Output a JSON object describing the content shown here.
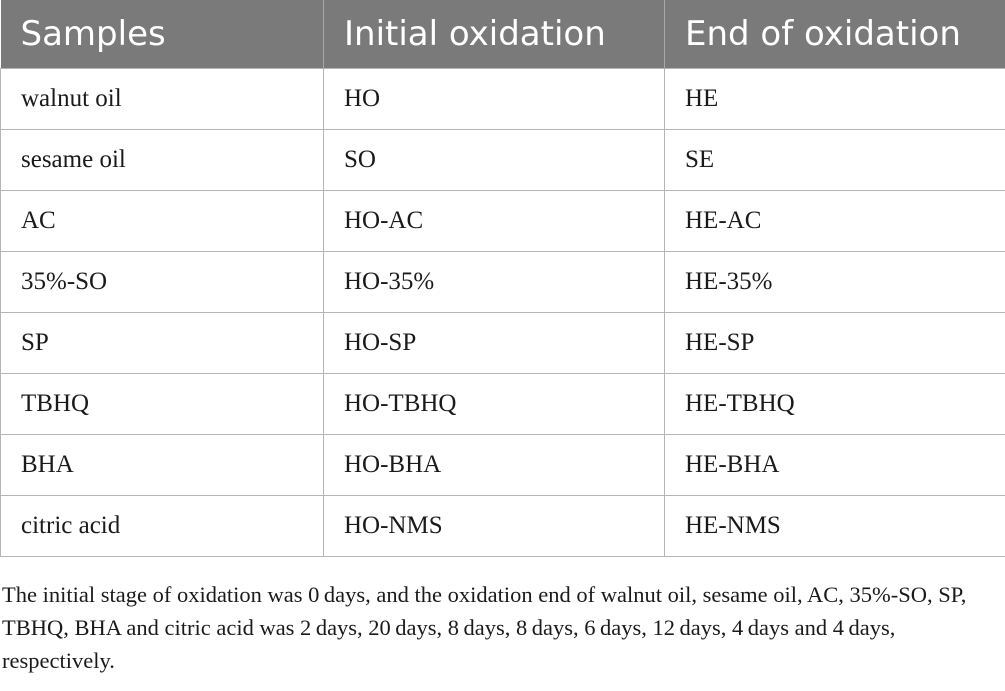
{
  "table": {
    "headers": [
      "Samples",
      "Initial oxidation",
      "End of oxidation"
    ],
    "rows": [
      [
        "walnut oil",
        "HO",
        "HE"
      ],
      [
        "sesame oil",
        "SO",
        "SE"
      ],
      [
        "AC",
        "HO-AC",
        "HE-AC"
      ],
      [
        "35%-SO",
        "HO-35%",
        "HE-35%"
      ],
      [
        "SP",
        "HO-SP",
        "HE-SP"
      ],
      [
        "TBHQ",
        "HO-TBHQ",
        "HE-TBHQ"
      ],
      [
        "BHA",
        "HO-BHA",
        "HE-BHA"
      ],
      [
        "citric acid",
        "HO-NMS",
        "HE-NMS"
      ]
    ]
  },
  "footnote": "The initial stage of oxidation was 0 days, and the oxidation end of walnut oil, sesame oil, AC, 35%-SO, SP, TBHQ, BHA and citric acid was 2 days, 20 days, 8 days, 8 days, 6 days, 12 days, 4 days and 4 days, respectively."
}
